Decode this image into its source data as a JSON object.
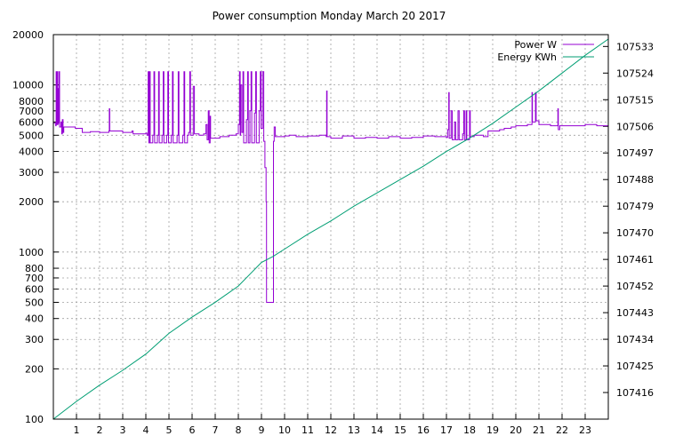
{
  "chart_data": {
    "type": "line",
    "title": "Power consumption Monday March 20 2017",
    "xlabel": "",
    "ylabel": "",
    "x_ticks": [
      1,
      2,
      3,
      4,
      5,
      6,
      7,
      8,
      9,
      10,
      11,
      12,
      13,
      14,
      15,
      16,
      17,
      18,
      19,
      20,
      21,
      22,
      23
    ],
    "xlim": [
      0,
      24
    ],
    "y_scale": "log",
    "ylim": [
      100,
      20000
    ],
    "y_ticks": [
      100,
      200,
      300,
      400,
      500,
      600,
      700,
      800,
      1000,
      2000,
      3000,
      4000,
      5000,
      6000,
      7000,
      8000,
      10000,
      20000
    ],
    "y2lim": [
      107407,
      107537
    ],
    "y2_ticks": [
      107416,
      107425,
      107434,
      107443,
      107452,
      107461,
      107470,
      107479,
      107488,
      107497,
      107506,
      107515,
      107524,
      107533
    ],
    "grid": true,
    "legend_position": "top-right",
    "series": [
      {
        "name": "Power W",
        "axis": "left",
        "color": "#9400d3",
        "points": [
          [
            0.0,
            5900
          ],
          [
            0.1,
            5700
          ],
          [
            0.12,
            12000
          ],
          [
            0.14,
            5800
          ],
          [
            0.16,
            12000
          ],
          [
            0.18,
            5800
          ],
          [
            0.2,
            9500
          ],
          [
            0.22,
            5900
          ],
          [
            0.24,
            12000
          ],
          [
            0.27,
            5600
          ],
          [
            0.3,
            5600
          ],
          [
            0.33,
            6000
          ],
          [
            0.36,
            5100
          ],
          [
            0.39,
            6200
          ],
          [
            0.42,
            5200
          ],
          [
            0.45,
            5600
          ],
          [
            0.8,
            5600
          ],
          [
            0.95,
            5500
          ],
          [
            1.2,
            5500
          ],
          [
            1.25,
            5200
          ],
          [
            1.6,
            5250
          ],
          [
            2.0,
            5200
          ],
          [
            2.4,
            5300
          ],
          [
            2.42,
            7200
          ],
          [
            2.44,
            5300
          ],
          [
            3.0,
            5200
          ],
          [
            3.4,
            5300
          ],
          [
            3.45,
            5100
          ],
          [
            4.0,
            5150
          ],
          [
            4.05,
            5000
          ],
          [
            4.1,
            12000
          ],
          [
            4.13,
            4500
          ],
          [
            4.16,
            12000
          ],
          [
            4.19,
            4500
          ],
          [
            4.3,
            5000
          ],
          [
            4.35,
            12000
          ],
          [
            4.38,
            4500
          ],
          [
            4.5,
            5000
          ],
          [
            4.55,
            12000
          ],
          [
            4.58,
            4500
          ],
          [
            4.7,
            5000
          ],
          [
            4.75,
            12000
          ],
          [
            4.78,
            4500
          ],
          [
            4.9,
            5000
          ],
          [
            4.95,
            12000
          ],
          [
            4.98,
            4500
          ],
          [
            5.1,
            5000
          ],
          [
            5.15,
            12000
          ],
          [
            5.18,
            4500
          ],
          [
            5.35,
            5000
          ],
          [
            5.4,
            12000
          ],
          [
            5.43,
            4500
          ],
          [
            5.6,
            5000
          ],
          [
            5.65,
            12000
          ],
          [
            5.68,
            4500
          ],
          [
            5.8,
            5000
          ],
          [
            5.85,
            5200
          ],
          [
            5.9,
            12000
          ],
          [
            5.93,
            5000
          ],
          [
            6.0,
            5000
          ],
          [
            6.05,
            9800
          ],
          [
            6.1,
            5100
          ],
          [
            6.3,
            5000
          ],
          [
            6.5,
            5100
          ],
          [
            6.6,
            5800
          ],
          [
            6.65,
            4700
          ],
          [
            6.7,
            7000
          ],
          [
            6.74,
            4500
          ],
          [
            6.78,
            6500
          ],
          [
            6.8,
            4800
          ],
          [
            6.9,
            4800
          ],
          [
            7.2,
            4900
          ],
          [
            7.6,
            5000
          ],
          [
            7.8,
            5000
          ],
          [
            7.9,
            5100
          ],
          [
            8.0,
            5800
          ],
          [
            8.05,
            12000
          ],
          [
            8.08,
            5000
          ],
          [
            8.1,
            10000
          ],
          [
            8.15,
            5200
          ],
          [
            8.2,
            12000
          ],
          [
            8.23,
            4500
          ],
          [
            8.35,
            6200
          ],
          [
            8.4,
            12000
          ],
          [
            8.43,
            4500
          ],
          [
            8.5,
            7000
          ],
          [
            8.55,
            12000
          ],
          [
            8.58,
            4500
          ],
          [
            8.7,
            6800
          ],
          [
            8.75,
            12000
          ],
          [
            8.78,
            4500
          ],
          [
            8.9,
            7000
          ],
          [
            8.95,
            12000
          ],
          [
            8.98,
            5500
          ],
          [
            9.05,
            12000
          ],
          [
            9.1,
            4600
          ],
          [
            9.15,
            3200
          ],
          [
            9.2,
            2000
          ],
          [
            9.22,
            500
          ],
          [
            9.5,
            500
          ],
          [
            9.52,
            4600
          ],
          [
            9.55,
            5600
          ],
          [
            9.6,
            4900
          ],
          [
            10.0,
            4950
          ],
          [
            10.2,
            5000
          ],
          [
            10.5,
            4900
          ],
          [
            11.0,
            4950
          ],
          [
            11.5,
            5000
          ],
          [
            11.8,
            4900
          ],
          [
            11.82,
            9200
          ],
          [
            11.84,
            4900
          ],
          [
            12.0,
            4800
          ],
          [
            12.5,
            4950
          ],
          [
            13.0,
            4800
          ],
          [
            13.5,
            4850
          ],
          [
            14.0,
            4800
          ],
          [
            14.5,
            4900
          ],
          [
            15.0,
            4800
          ],
          [
            15.5,
            4850
          ],
          [
            16.0,
            4950
          ],
          [
            16.5,
            4900
          ],
          [
            17.0,
            4850
          ],
          [
            17.05,
            5400
          ],
          [
            17.1,
            9000
          ],
          [
            17.12,
            4800
          ],
          [
            17.2,
            7000
          ],
          [
            17.25,
            4700
          ],
          [
            17.35,
            6000
          ],
          [
            17.4,
            4700
          ],
          [
            17.5,
            7000
          ],
          [
            17.55,
            4700
          ],
          [
            17.7,
            5100
          ],
          [
            17.75,
            7000
          ],
          [
            17.78,
            4700
          ],
          [
            17.85,
            7000
          ],
          [
            17.88,
            4700
          ],
          [
            18.0,
            7000
          ],
          [
            18.03,
            4900
          ],
          [
            18.2,
            5000
          ],
          [
            18.4,
            5000
          ],
          [
            18.6,
            4900
          ],
          [
            18.8,
            5300
          ],
          [
            19.0,
            5300
          ],
          [
            19.3,
            5400
          ],
          [
            19.5,
            5500
          ],
          [
            19.8,
            5600
          ],
          [
            20.0,
            5700
          ],
          [
            20.2,
            5700
          ],
          [
            20.5,
            5800
          ],
          [
            20.7,
            9000
          ],
          [
            20.72,
            6000
          ],
          [
            20.85,
            9000
          ],
          [
            20.88,
            6100
          ],
          [
            21.0,
            5800
          ],
          [
            21.5,
            5700
          ],
          [
            21.8,
            5700
          ],
          [
            21.82,
            7200
          ],
          [
            21.84,
            5400
          ],
          [
            21.9,
            5700
          ],
          [
            22.0,
            5700
          ],
          [
            22.5,
            5700
          ],
          [
            23.0,
            5800
          ],
          [
            23.5,
            5700
          ],
          [
            24.0,
            5700
          ]
        ]
      },
      {
        "name": "Energy KWh",
        "axis": "right",
        "color": "#009e73",
        "points": [
          [
            0.0,
            107407
          ],
          [
            1.0,
            107413
          ],
          [
            2.0,
            107418.5
          ],
          [
            3.0,
            107423.5
          ],
          [
            4.0,
            107429
          ],
          [
            5.0,
            107436
          ],
          [
            6.0,
            107441.5
          ],
          [
            7.0,
            107446.5
          ],
          [
            8.0,
            107452
          ],
          [
            8.5,
            107456
          ],
          [
            9.0,
            107460
          ],
          [
            9.5,
            107462
          ],
          [
            10.0,
            107464.5
          ],
          [
            11.0,
            107469.5
          ],
          [
            12.0,
            107474
          ],
          [
            13.0,
            107479
          ],
          [
            14.0,
            107483.5
          ],
          [
            15.0,
            107488
          ],
          [
            16.0,
            107492.5
          ],
          [
            17.0,
            107497.5
          ],
          [
            18.0,
            107502
          ],
          [
            19.0,
            107507
          ],
          [
            20.0,
            107512.5
          ],
          [
            21.0,
            107518
          ],
          [
            22.0,
            107524
          ],
          [
            23.0,
            107530
          ],
          [
            24.0,
            107535.5
          ]
        ]
      }
    ]
  }
}
